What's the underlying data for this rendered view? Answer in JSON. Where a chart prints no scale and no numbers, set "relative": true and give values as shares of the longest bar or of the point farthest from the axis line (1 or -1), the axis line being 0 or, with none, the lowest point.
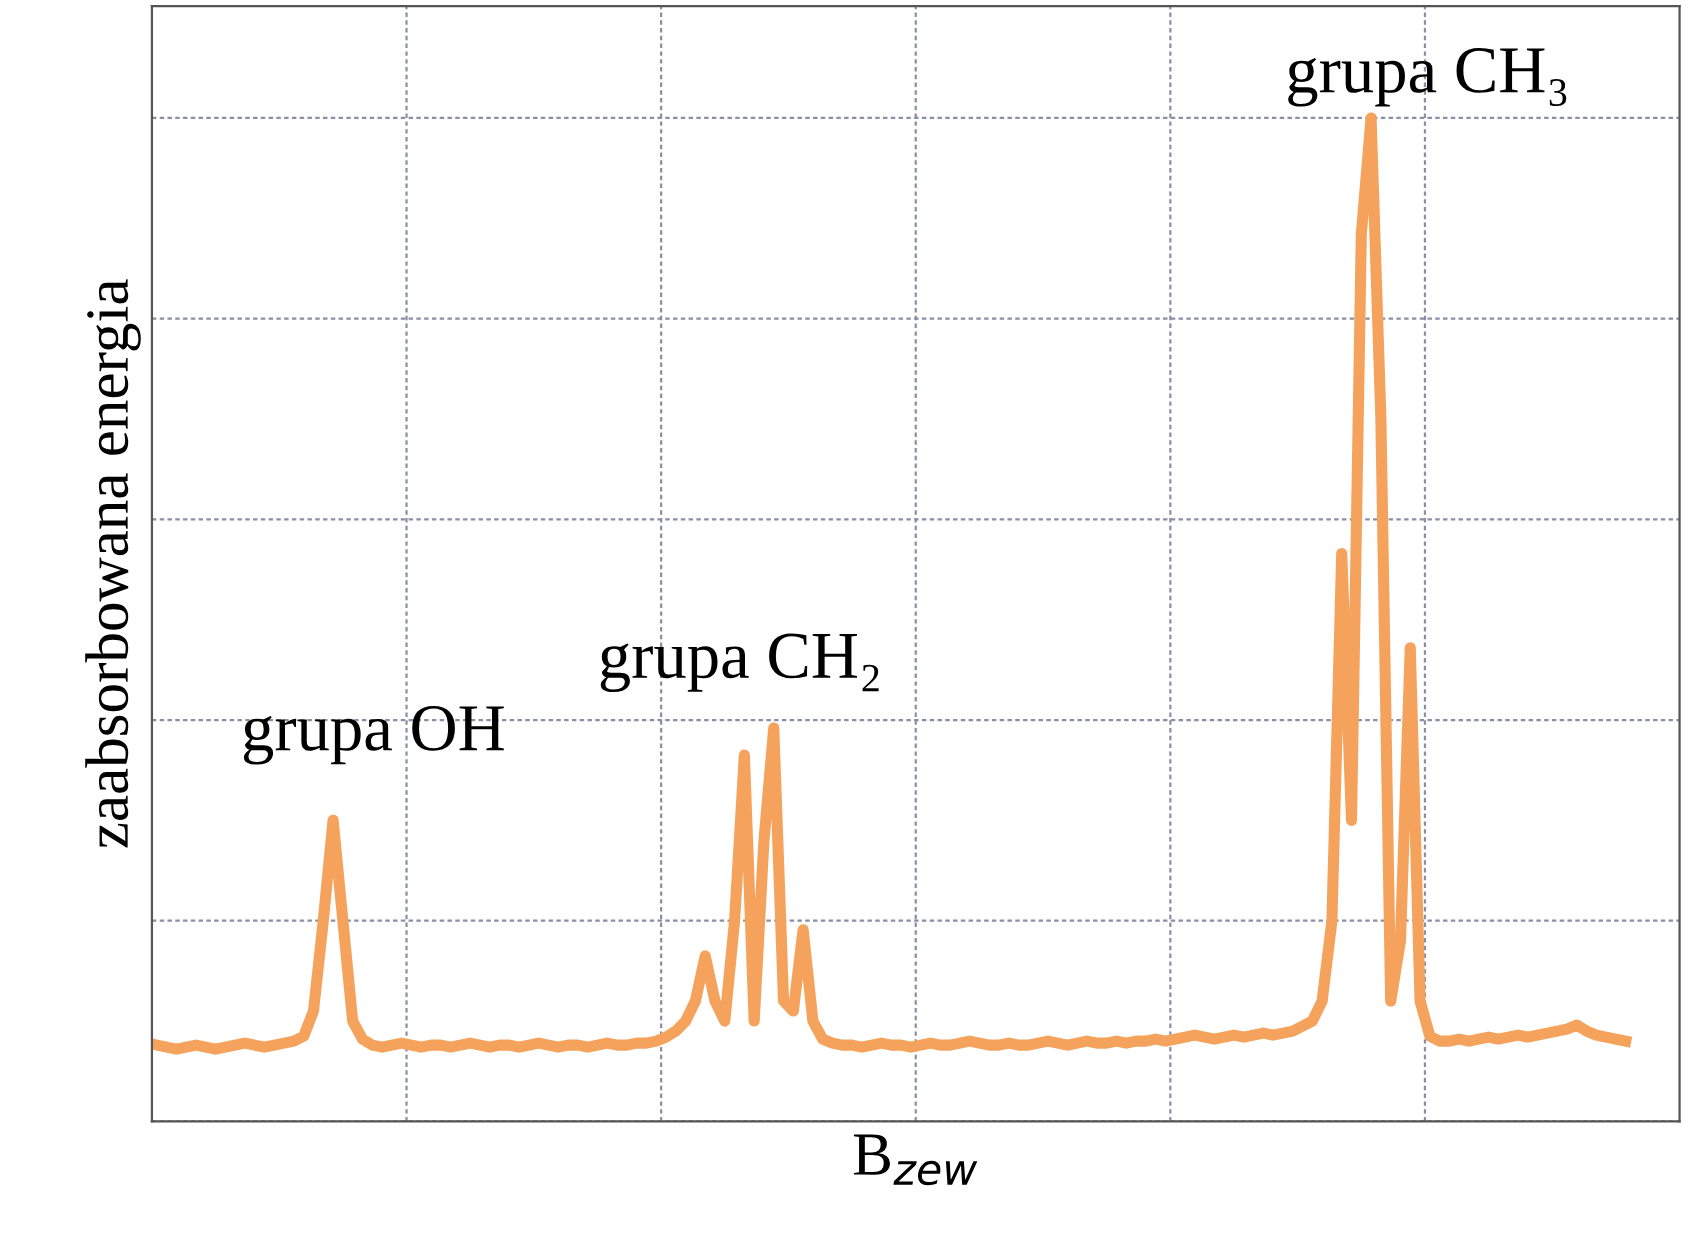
{
  "chart_data": {
    "type": "line",
    "relative": true,
    "xlabel": "B$_{zew}$",
    "ylabel": "zaabsorbowana energia",
    "categories": [
      null,
      null,
      null,
      null,
      null,
      null,
      null,
      null,
      null,
      null,
      null,
      null,
      null,
      null,
      null,
      null,
      null,
      null,
      null,
      null,
      null,
      null,
      null,
      null,
      null,
      null,
      null,
      null,
      null,
      null,
      null,
      null,
      null,
      null,
      null,
      null,
      null,
      null,
      null,
      null,
      null,
      null,
      null,
      null,
      null,
      null,
      null,
      null,
      null,
      null,
      null,
      null,
      null,
      null,
      null,
      null,
      null,
      null,
      null,
      null,
      null,
      null,
      null,
      null,
      null,
      null,
      null,
      null,
      null,
      null,
      null,
      null,
      null,
      null,
      null,
      null,
      null,
      null,
      null,
      null,
      null,
      null,
      null,
      null,
      null,
      null,
      null,
      null,
      null,
      null,
      null,
      null,
      null,
      null,
      null,
      null,
      null,
      null,
      null,
      null,
      null,
      null,
      null,
      null,
      null,
      null,
      null,
      null,
      null,
      null,
      null,
      null,
      null,
      null,
      null,
      null,
      null,
      null,
      null,
      null,
      null,
      null,
      null,
      null,
      null,
      null,
      null,
      null,
      null,
      null,
      null,
      null,
      null,
      null,
      null,
      null,
      null,
      null,
      null,
      null,
      null,
      null,
      null,
      null,
      null,
      null,
      null,
      null,
      null,
      null,
      null,
      null,
      null,
      null,
      null,
      null
    ],
    "series": [
      {
        "color": "#f5a35c",
        "values": [
          0.076,
          0.074,
          0.072,
          0.074,
          0.076,
          0.074,
          0.072,
          0.074,
          0.076,
          0.078,
          0.076,
          0.074,
          0.076,
          0.078,
          0.08,
          0.085,
          0.11,
          0.2,
          0.3,
          0.2,
          0.1,
          0.082,
          0.076,
          0.074,
          0.076,
          0.078,
          0.076,
          0.074,
          0.076,
          0.076,
          0.074,
          0.076,
          0.078,
          0.076,
          0.074,
          0.076,
          0.076,
          0.074,
          0.076,
          0.078,
          0.076,
          0.074,
          0.076,
          0.076,
          0.074,
          0.076,
          0.078,
          0.076,
          0.076,
          0.078,
          0.078,
          0.08,
          0.084,
          0.09,
          0.1,
          0.12,
          0.165,
          0.12,
          0.1,
          0.2,
          0.365,
          0.1,
          0.28,
          0.392,
          0.12,
          0.11,
          0.191,
          0.1,
          0.082,
          0.078,
          0.076,
          0.076,
          0.074,
          0.076,
          0.078,
          0.076,
          0.076,
          0.074,
          0.076,
          0.078,
          0.076,
          0.076,
          0.078,
          0.08,
          0.078,
          0.076,
          0.076,
          0.078,
          0.076,
          0.076,
          0.078,
          0.08,
          0.078,
          0.076,
          0.078,
          0.08,
          0.078,
          0.078,
          0.08,
          0.078,
          0.08,
          0.08,
          0.082,
          0.08,
          0.082,
          0.084,
          0.086,
          0.084,
          0.082,
          0.084,
          0.086,
          0.084,
          0.086,
          0.088,
          0.086,
          0.088,
          0.09,
          0.095,
          0.1,
          0.12,
          0.2,
          0.566,
          0.3,
          0.884,
          1.0,
          0.7,
          0.12,
          0.18,
          0.472,
          0.12,
          0.085,
          0.08,
          0.08,
          0.082,
          0.08,
          0.082,
          0.084,
          0.082,
          0.084,
          0.086,
          0.084,
          0.086,
          0.088,
          0.09,
          0.092,
          0.096,
          0.09,
          0.086,
          0.084,
          0.082,
          0.08,
          null,
          null,
          null,
          null,
          null
        ]
      }
    ],
    "tick_labels": false,
    "grid": true,
    "marker": "none",
    "line_style": "solid",
    "annotations": [
      "grupa OH",
      "grupa CH₂",
      "grupa CH₃"
    ]
  }
}
